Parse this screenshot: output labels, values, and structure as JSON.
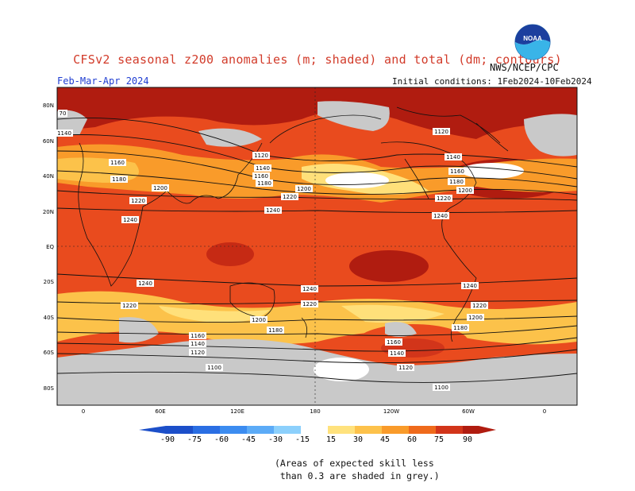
{
  "header": {
    "title": "CFSv2 seasonal z200 anomalies (m; shaded) and total (dm; contours)",
    "agency": "NWS/NCEP/CPC",
    "season": "Feb-Mar-Apr 2024",
    "initial_conditions": "Initial conditions: 1Feb2024-10Feb2024"
  },
  "logo": {
    "text": "NOAA"
  },
  "map": {
    "lat_labels": [
      "80N",
      "60N",
      "40N",
      "20N",
      "EQ",
      "20S",
      "40S",
      "60S",
      "80S"
    ],
    "lon_labels": [
      "0",
      "60E",
      "120E",
      "180",
      "120W",
      "60W",
      "0"
    ],
    "contour_labels": [
      "1140",
      "1160",
      "1180",
      "1200",
      "1220",
      "1240",
      "1120",
      "1100"
    ],
    "corner_label": "70",
    "grey_meaning": "skill < 0.3",
    "colors": {
      "ocean_base": "#e94b1e",
      "grey": "#c9c9c9",
      "c15": "#ffe07a",
      "c30": "#fcc24a",
      "c45": "#f99b2a",
      "c60": "#ef6a1b",
      "c75": "#d2351a",
      "c90": "#b01c10"
    }
  },
  "colorbar": {
    "ticks": [
      "-90",
      "-75",
      "-60",
      "-45",
      "-30",
      "-15",
      "15",
      "30",
      "45",
      "60",
      "75",
      "90"
    ],
    "colors": [
      "#1c4fc9",
      "#2a6ee3",
      "#3c8cf0",
      "#5cabf7",
      "#8cd0fc",
      "#c2ecff",
      "#ffffff",
      "#ffe27d",
      "#fdc24b",
      "#f99b2a",
      "#ef6a1b",
      "#d2351a",
      "#b01c10"
    ]
  },
  "footer": {
    "line1": "(Areas of expected skill less",
    "line2": " than 0.3 are shaded in grey.)"
  }
}
